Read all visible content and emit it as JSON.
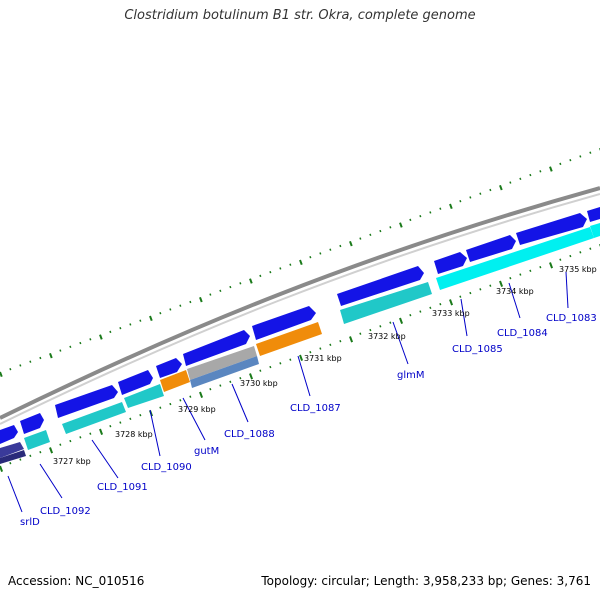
{
  "title": "Clostridium botulinum B1 str. Okra, complete genome",
  "accession_text": "Accession: NC_010516",
  "summary_text": "Topology: circular; Length: 3,958,233 bp; Genes: 3,761",
  "colors": {
    "backbone": "#8a8a8a",
    "cds_forward": "#1414e6",
    "cds_reverse": "#20c8c8",
    "highlight_orange": "#f08c0a",
    "highlight_gray": "#a8a8a8",
    "highlight_steel": "#5a86c0",
    "highlight_navy": "#2a2a7a",
    "tick": "#1a7a1a",
    "label": "#0000c8"
  },
  "scale_labels": [
    "3727 kbp",
    "3728 kbp",
    "3729 kbp",
    "3730 kbp",
    "3731 kbp",
    "3732 kbp",
    "3733 kbp",
    "3734 kbp",
    "3735 kbp"
  ],
  "gene_labels": [
    "srlD",
    "CLD_1092",
    "CLD_1091",
    "CLD_1090",
    "gutM",
    "CLD_1088",
    "CLD_1087",
    "glmM",
    "CLD_1085",
    "CLD_1084",
    "CLD_1083"
  ]
}
